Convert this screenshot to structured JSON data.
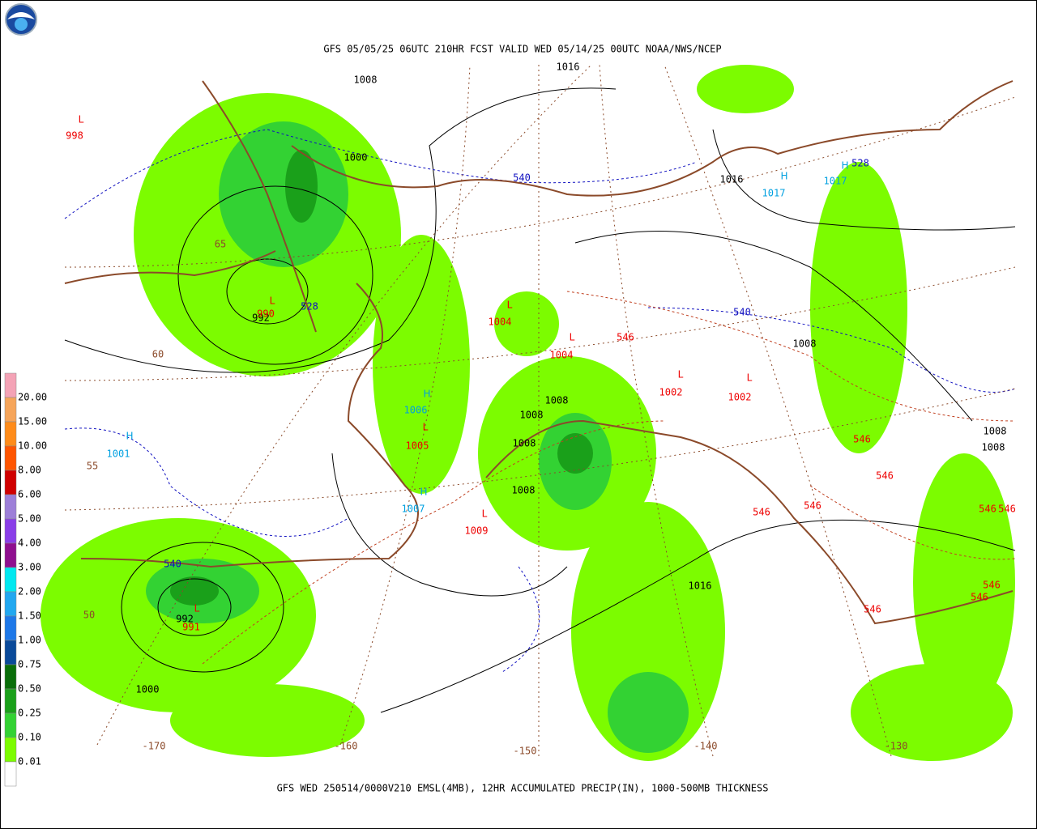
{
  "header": {
    "title": "GFS 05/05/25 06UTC 210HR FCST VALID WED 05/14/25 00UTC NOAA/NWS/NCEP",
    "footer": "GFS WED 250514/0000V210 EMSL(4MB), 12HR ACCUMULATED PRECIP(IN), 1000-500MB THICKNESS"
  },
  "legend": {
    "labels": [
      "20.00",
      "15.00",
      "10.00",
      "8.00",
      "6.00",
      "5.00",
      "4.00",
      "3.00",
      "2.00",
      "1.50",
      "1.00",
      "0.75",
      "0.50",
      "0.25",
      "0.10",
      "0.01"
    ],
    "colors": [
      "#f4a3b6",
      "#f6a55a",
      "#ff8c1a",
      "#ff5500",
      "#d00000",
      "#9d7fd8",
      "#8a3ee8",
      "#8f0f8f",
      "#00e8f0",
      "#22a8f0",
      "#1e78e8",
      "#0a4a9a",
      "#0a6e0a",
      "#1aa01a",
      "#33d233",
      "#7cfc00",
      "#ffffff"
    ]
  },
  "labels": [
    {
      "text": "L",
      "color": "#ee0000"
    },
    {
      "text": "998",
      "color": "#ee0000"
    },
    {
      "text": "1008",
      "color": "#000000"
    },
    {
      "text": "1016",
      "color": "#000000"
    },
    {
      "text": "1000",
      "color": "#000000"
    },
    {
      "text": "540",
      "color": "#1010c0"
    },
    {
      "text": "1016",
      "color": "#000000"
    },
    {
      "text": "H",
      "color": "#00a0e0"
    },
    {
      "text": "1017",
      "color": "#00a0e0"
    },
    {
      "text": "H",
      "color": "#00a0e0"
    },
    {
      "text": "1017",
      "color": "#00a0e0"
    },
    {
      "text": "528",
      "color": "#1010c0"
    },
    {
      "text": "65",
      "color": "#8b4a2a"
    },
    {
      "text": "L",
      "color": "#ee0000"
    },
    {
      "text": "992",
      "color": "#000000"
    },
    {
      "text": "990",
      "color": "#ee0000"
    },
    {
      "text": "528",
      "color": "#1010c0"
    },
    {
      "text": "60",
      "color": "#8b4a2a"
    },
    {
      "text": "L",
      "color": "#ee0000"
    },
    {
      "text": "1004",
      "color": "#ee0000"
    },
    {
      "text": "L",
      "color": "#ee0000"
    },
    {
      "text": "1004",
      "color": "#ee0000"
    },
    {
      "text": "546",
      "color": "#ee0000"
    },
    {
      "text": "540",
      "color": "#1010c0"
    },
    {
      "text": "1008",
      "color": "#000000"
    },
    {
      "text": "L",
      "color": "#ee0000"
    },
    {
      "text": "1002",
      "color": "#ee0000"
    },
    {
      "text": "L",
      "color": "#ee0000"
    },
    {
      "text": "1002",
      "color": "#ee0000"
    },
    {
      "text": "H",
      "color": "#00a0e0"
    },
    {
      "text": "1006",
      "color": "#00a0e0"
    },
    {
      "text": "L",
      "color": "#ee0000"
    },
    {
      "text": "1005",
      "color": "#ee0000"
    },
    {
      "text": "1008",
      "color": "#000000"
    },
    {
      "text": "1008",
      "color": "#000000"
    },
    {
      "text": "1008",
      "color": "#000000"
    },
    {
      "text": "H",
      "color": "#00a0e0"
    },
    {
      "text": "1001",
      "color": "#00a0e0"
    },
    {
      "text": "55",
      "color": "#8b4a2a"
    },
    {
      "text": "H",
      "color": "#00a0e0"
    },
    {
      "text": "1007",
      "color": "#00a0e0"
    },
    {
      "text": "1008",
      "color": "#000000"
    },
    {
      "text": "L",
      "color": "#ee0000"
    },
    {
      "text": "1009",
      "color": "#ee0000"
    },
    {
      "text": "1008",
      "color": "#000000"
    },
    {
      "text": "1008",
      "color": "#000000"
    },
    {
      "text": "546",
      "color": "#ee0000"
    },
    {
      "text": "546",
      "color": "#ee0000"
    },
    {
      "text": "546",
      "color": "#ee0000"
    },
    {
      "text": "546",
      "color": "#ee0000"
    },
    {
      "text": "546",
      "color": "#ee0000"
    },
    {
      "text": "546",
      "color": "#ee0000"
    },
    {
      "text": "546",
      "color": "#ee0000"
    },
    {
      "text": "546",
      "color": "#ee0000"
    },
    {
      "text": "546",
      "color": "#ee0000"
    },
    {
      "text": "540",
      "color": "#1010c0"
    },
    {
      "text": "L",
      "color": "#ee0000"
    },
    {
      "text": "992",
      "color": "#000000"
    },
    {
      "text": "991",
      "color": "#ee0000"
    },
    {
      "text": "50",
      "color": "#8b4a2a"
    },
    {
      "text": "1016",
      "color": "#000000"
    },
    {
      "text": "1000",
      "color": "#000000"
    },
    {
      "text": "-170",
      "color": "#8b4a2a"
    },
    {
      "text": "-160",
      "color": "#8b4a2a"
    },
    {
      "text": "-150",
      "color": "#8b4a2a"
    },
    {
      "text": "-140",
      "color": "#8b4a2a"
    },
    {
      "text": "-130",
      "color": "#8b4a2a"
    }
  ]
}
